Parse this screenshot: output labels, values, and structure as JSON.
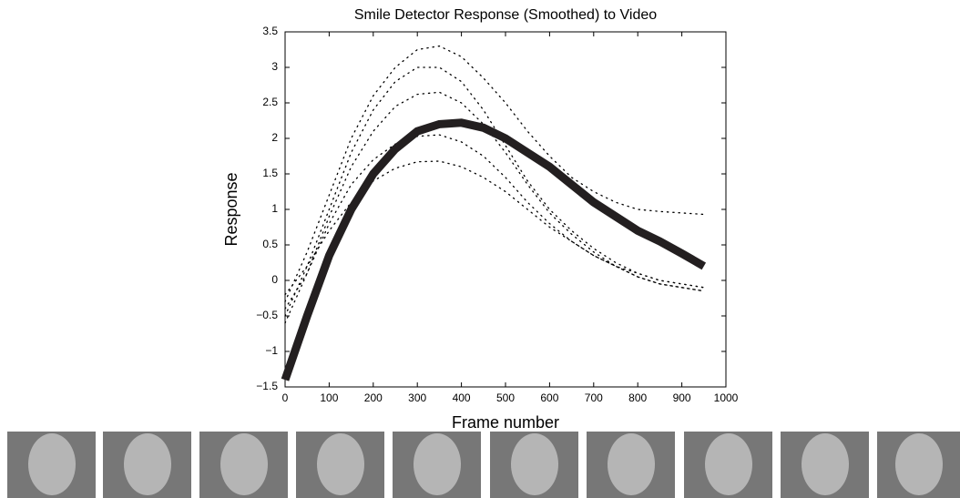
{
  "chart_data": {
    "type": "line",
    "title": "Smile Detector Response (Smoothed) to Video",
    "x_label": "Frame number",
    "y_label": "Response",
    "x": [
      0,
      50,
      100,
      150,
      200,
      250,
      300,
      350,
      400,
      450,
      500,
      550,
      600,
      650,
      700,
      750,
      800,
      850,
      900,
      950
    ],
    "series": [
      {
        "color": "#000000",
        "style": "dotted",
        "values": [
          -0.3,
          0.4,
          1.2,
          2.0,
          2.6,
          3.0,
          3.25,
          3.3,
          3.15,
          2.85,
          2.5,
          2.1,
          1.75,
          1.45,
          1.25,
          1.1,
          1.0,
          0.97,
          0.95,
          0.93
        ]
      },
      {
        "color": "#000000",
        "style": "dotted",
        "values": [
          -0.5,
          0.2,
          1.0,
          1.8,
          2.4,
          2.8,
          3.0,
          3.0,
          2.8,
          2.4,
          1.9,
          1.4,
          1.0,
          0.7,
          0.45,
          0.25,
          0.1,
          0.0,
          -0.05,
          -0.1
        ]
      },
      {
        "color": "#000000",
        "style": "dotted",
        "values": [
          -0.6,
          0.1,
          0.9,
          1.6,
          2.1,
          2.45,
          2.62,
          2.65,
          2.5,
          2.2,
          1.8,
          1.35,
          0.95,
          0.65,
          0.4,
          0.2,
          0.05,
          -0.05,
          -0.1,
          -0.15
        ]
      },
      {
        "color": "#000000",
        "style": "dotted",
        "values": [
          -0.4,
          0.1,
          0.8,
          1.35,
          1.7,
          1.92,
          2.03,
          2.05,
          1.95,
          1.75,
          1.45,
          1.1,
          0.8,
          0.55,
          0.35,
          0.2,
          0.05,
          -0.05,
          -0.1,
          -0.15
        ]
      },
      {
        "color": "#000000",
        "style": "dotted",
        "values": [
          -0.2,
          0.2,
          0.7,
          1.1,
          1.4,
          1.58,
          1.67,
          1.68,
          1.6,
          1.45,
          1.25,
          1.0,
          0.75,
          0.55,
          0.35,
          0.2,
          0.1,
          0.0,
          -0.05,
          -0.1
        ]
      },
      {
        "color": "#231f20",
        "style": "thick",
        "values": [
          -1.4,
          -0.5,
          0.35,
          1.0,
          1.5,
          1.85,
          2.1,
          2.2,
          2.22,
          2.15,
          2.0,
          1.8,
          1.6,
          1.35,
          1.1,
          0.9,
          0.7,
          0.55,
          0.38,
          0.2
        ]
      }
    ],
    "xlim": [
      0,
      1000
    ],
    "xticks": [
      0,
      100,
      200,
      300,
      400,
      500,
      600,
      700,
      800,
      900,
      1000
    ],
    "ylim": [
      -1.5,
      3.5
    ],
    "yticks": [
      {
        "value": -1.5,
        "label": "−1.5"
      },
      {
        "value": -1,
        "label": "−1"
      },
      {
        "value": -0.5,
        "label": "−0.5"
      },
      0,
      0.5,
      1,
      1.5,
      2,
      2.5,
      3,
      3.5
    ],
    "grid": false
  }
}
